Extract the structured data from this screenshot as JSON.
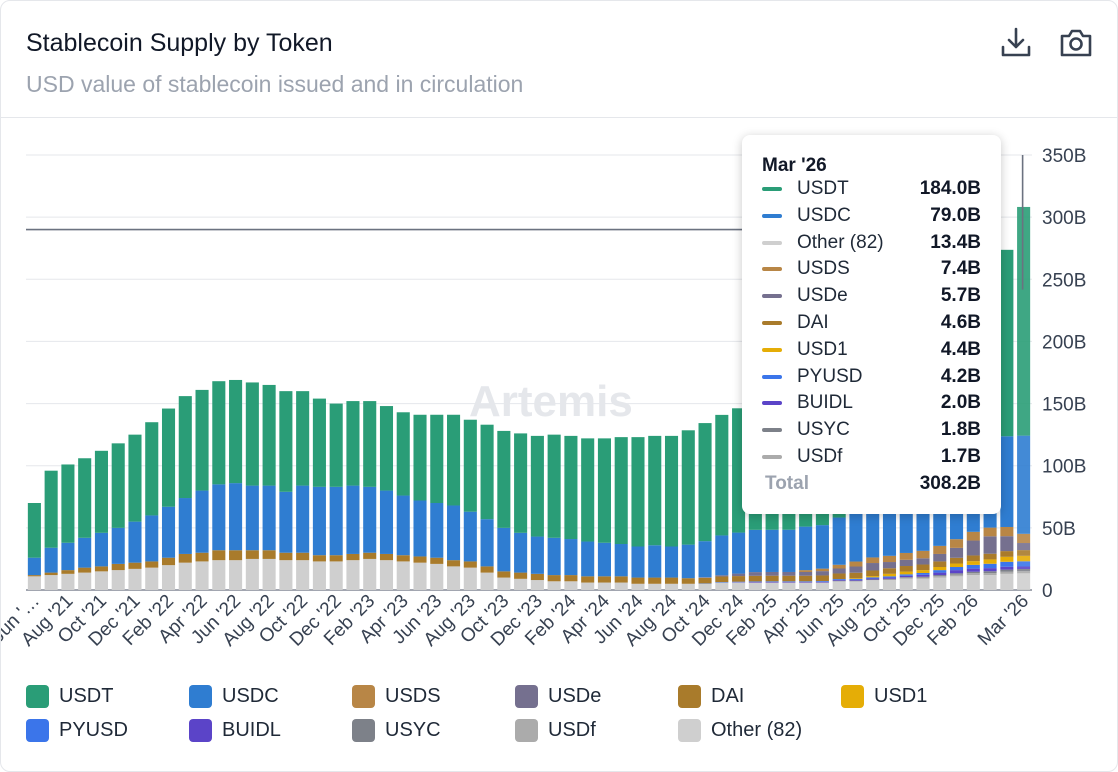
{
  "header": {
    "title": "Stablecoin Supply by Token",
    "subtitle": "USD value of stablecoin issued and in circulation"
  },
  "icons": {
    "download": "download-icon",
    "camera": "camera-icon"
  },
  "watermark": "Artemis",
  "chart_data": {
    "type": "bar",
    "stacked": true,
    "title": "Stablecoin Supply by Token",
    "subtitle": "USD value of stablecoin issued and in circulation",
    "y_axis": {
      "position": "right",
      "ylim": [
        0,
        350
      ],
      "unit": "B",
      "ticks": [
        "0",
        "50B",
        "100B",
        "150B",
        "200B",
        "250B",
        "300B",
        "350B"
      ]
    },
    "x_tick_labels": [
      "Jun '…",
      "Aug '21",
      "Oct '21",
      "Dec '21",
      "Feb '22",
      "Apr '22",
      "Jun '22",
      "Aug '22",
      "Oct '22",
      "Dec '22",
      "Feb '23",
      "Apr '23",
      "Jun '23",
      "Aug '23",
      "Oct '23",
      "Dec '23",
      "Feb '24",
      "Apr '24",
      "Jun '24",
      "Aug '24",
      "Oct '24",
      "Dec '24",
      "Feb '25",
      "Apr '25",
      "Jun '25",
      "Aug '25",
      "Oct '25",
      "Dec '25",
      "Feb '26",
      "Mar '26"
    ],
    "reference_line": 290,
    "highlighted_index": 59,
    "legend_placement": "bottom",
    "grid": true,
    "series": [
      {
        "name": "USDT",
        "color": "#2a9d77",
        "values": [
          44,
          62,
          63,
          64,
          66,
          68,
          70,
          75,
          79,
          82,
          81,
          83,
          83,
          83,
          81,
          81,
          76,
          71,
          67,
          68,
          69,
          68,
          67,
          69,
          71,
          73,
          74,
          76,
          78,
          80,
          81,
          83,
          83,
          83,
          84,
          86,
          88,
          88,
          89,
          92,
          95,
          97,
          100,
          105,
          110,
          111,
          113,
          114,
          117,
          118,
          119,
          119,
          120,
          121,
          123,
          129,
          136,
          142,
          150,
          184
        ]
      },
      {
        "name": "USDC",
        "color": "#2f7dd1",
        "values": [
          14,
          20,
          22,
          24,
          27,
          29,
          33,
          37,
          41,
          45,
          50,
          53,
          54,
          52,
          52,
          49,
          54,
          55,
          55,
          55,
          53,
          51,
          48,
          45,
          44,
          44,
          40,
          38,
          35,
          32,
          30,
          30,
          29,
          28,
          27,
          26,
          25,
          26,
          25,
          27,
          29,
          32,
          33,
          34,
          34,
          34,
          35,
          35,
          38,
          40,
          44,
          47,
          52,
          56,
          60,
          62,
          63,
          64,
          73,
          79
        ]
      },
      {
        "name": "USDS",
        "color": "#b88646",
        "values": [
          0,
          0,
          0,
          0,
          0,
          0,
          0,
          0,
          0,
          0,
          0,
          0,
          0,
          0,
          0,
          0,
          0,
          0,
          0,
          0,
          0,
          0,
          0,
          0,
          0,
          0,
          0,
          0,
          0,
          0,
          0,
          0,
          0,
          0,
          0,
          0,
          0,
          0,
          0,
          0,
          0,
          0,
          0,
          0,
          0,
          0,
          1.5,
          2,
          3,
          4,
          4.5,
          5,
          5.5,
          6,
          6.5,
          7,
          7,
          7,
          7.4,
          7.4
        ]
      },
      {
        "name": "USDe",
        "color": "#75708f",
        "values": [
          0,
          0,
          0,
          0,
          0,
          0,
          0,
          0,
          0,
          0,
          0,
          0,
          0,
          0,
          0,
          0,
          0,
          0,
          0,
          0,
          0,
          0,
          0,
          0,
          0,
          0,
          0,
          0,
          0,
          0,
          0,
          0,
          0,
          0,
          0,
          0,
          0,
          0,
          0,
          0,
          0.5,
          1,
          2,
          3,
          3,
          3,
          3,
          3.5,
          4,
          5,
          6,
          5,
          5,
          5,
          6,
          8,
          12,
          14,
          12,
          5.7
        ]
      },
      {
        "name": "DAI",
        "color": "#a97b2b",
        "values": [
          1,
          2,
          3,
          4,
          4,
          5,
          5,
          5,
          6,
          7,
          7,
          8,
          8,
          7,
          7,
          6,
          6,
          5,
          5,
          5,
          5,
          5,
          5,
          5,
          5,
          5,
          5,
          5,
          5,
          5,
          5,
          5,
          5,
          5,
          5,
          5,
          5,
          5,
          5,
          4.5,
          4.5,
          4.5,
          4.5,
          4.5,
          4.5,
          4.5,
          4.5,
          4.5,
          4.5,
          4.5,
          4.5,
          4.5,
          4.5,
          4.5,
          4.5,
          4.6,
          4.6,
          4.6,
          4.6,
          4.6
        ]
      },
      {
        "name": "USD1",
        "color": "#e5ad06",
        "values": [
          0,
          0,
          0,
          0,
          0,
          0,
          0,
          0,
          0,
          0,
          0,
          0,
          0,
          0,
          0,
          0,
          0,
          0,
          0,
          0,
          0,
          0,
          0,
          0,
          0,
          0,
          0,
          0,
          0,
          0,
          0,
          0,
          0,
          0,
          0,
          0,
          0,
          0,
          0,
          0,
          0,
          0,
          0,
          0,
          0,
          0,
          0,
          0,
          0,
          0.5,
          1,
          2,
          2.2,
          2.3,
          2.5,
          2.8,
          3,
          3.5,
          4,
          4.4
        ]
      },
      {
        "name": "PYUSD",
        "color": "#3b75ea",
        "values": [
          0,
          0,
          0,
          0,
          0,
          0,
          0,
          0,
          0,
          0,
          0,
          0,
          0,
          0,
          0,
          0,
          0,
          0,
          0,
          0,
          0,
          0,
          0,
          0,
          0,
          0,
          0,
          0,
          0,
          0,
          0,
          0,
          0,
          0,
          0,
          0,
          0,
          0,
          0,
          0,
          0.3,
          0.4,
          0.4,
          0.4,
          0.5,
          0.5,
          0.5,
          0.6,
          0.7,
          0.8,
          0.9,
          1,
          1.2,
          1.5,
          2,
          2.5,
          3,
          3.5,
          4,
          4.2
        ]
      },
      {
        "name": "BUIDL",
        "color": "#5b44c8",
        "values": [
          0,
          0,
          0,
          0,
          0,
          0,
          0,
          0,
          0,
          0,
          0,
          0,
          0,
          0,
          0,
          0,
          0,
          0,
          0,
          0,
          0,
          0,
          0,
          0,
          0,
          0,
          0,
          0,
          0,
          0,
          0,
          0,
          0,
          0,
          0,
          0,
          0,
          0,
          0,
          0,
          0,
          0,
          0.3,
          0.5,
          0.5,
          0.5,
          0.5,
          0.6,
          0.6,
          0.6,
          0.8,
          1,
          1,
          1.5,
          2,
          2.5,
          2.5,
          2.5,
          2.3,
          2
        ]
      },
      {
        "name": "USYC",
        "color": "#7d8189",
        "values": [
          0,
          0,
          0,
          0,
          0,
          0,
          0,
          0,
          0,
          0,
          0,
          0,
          0,
          0,
          0,
          0,
          0,
          0,
          0,
          0,
          0,
          0,
          0,
          0,
          0,
          0,
          0,
          0,
          0,
          0,
          0,
          0,
          0,
          0,
          0,
          0,
          0,
          0,
          0,
          0,
          0,
          0,
          0,
          0,
          0,
          0,
          0,
          0,
          0.5,
          0.5,
          0.5,
          0.5,
          0.6,
          0.7,
          0.8,
          1,
          1.2,
          1.5,
          1.7,
          1.8
        ]
      },
      {
        "name": "USDf",
        "color": "#ababab",
        "values": [
          0,
          0,
          0,
          0,
          0,
          0,
          0,
          0,
          0,
          0,
          0,
          0,
          0,
          0,
          0,
          0,
          0,
          0,
          0,
          0,
          0,
          0,
          0,
          0,
          0,
          0,
          0,
          0,
          0,
          0,
          0,
          0,
          0,
          0,
          0,
          0,
          0,
          0,
          0,
          0,
          0,
          0,
          0,
          0,
          0,
          0,
          0,
          0,
          0,
          0,
          0,
          0.5,
          0.8,
          1,
          1.2,
          1.5,
          1.5,
          1.6,
          1.7,
          1.7
        ]
      },
      {
        "name": "Other (82)",
        "color": "#cfcfcf",
        "values": [
          11,
          12,
          13,
          14,
          15,
          16,
          17,
          18,
          20,
          22,
          23,
          24,
          24,
          25,
          25,
          24,
          24,
          23,
          23,
          24,
          25,
          24,
          23,
          22,
          21,
          19,
          18,
          14,
          10,
          9,
          8,
          7,
          7,
          6,
          6,
          6,
          5,
          5,
          5,
          5,
          5,
          6,
          6,
          6,
          6,
          6,
          6,
          6,
          7,
          7,
          8,
          8,
          9,
          9,
          10,
          11,
          12,
          12,
          13,
          13.4
        ]
      }
    ],
    "tooltip": {
      "date": "Mar '26",
      "rows": [
        {
          "name": "USDT",
          "value": "184.0B",
          "color": "#2a9d77"
        },
        {
          "name": "USDC",
          "value": "79.0B",
          "color": "#2f7dd1"
        },
        {
          "name": "Other (82)",
          "value": "13.4B",
          "color": "#cfcfcf"
        },
        {
          "name": "USDS",
          "value": "7.4B",
          "color": "#b88646"
        },
        {
          "name": "USDe",
          "value": "5.7B",
          "color": "#75708f"
        },
        {
          "name": "DAI",
          "value": "4.6B",
          "color": "#a97b2b"
        },
        {
          "name": "USD1",
          "value": "4.4B",
          "color": "#e5ad06"
        },
        {
          "name": "PYUSD",
          "value": "4.2B",
          "color": "#3b75ea"
        },
        {
          "name": "BUIDL",
          "value": "2.0B",
          "color": "#5b44c8"
        },
        {
          "name": "USYC",
          "value": "1.8B",
          "color": "#7d8189"
        },
        {
          "name": "USDf",
          "value": "1.7B",
          "color": "#ababab"
        }
      ],
      "total_label": "Total",
      "total_value": "308.2B"
    }
  }
}
